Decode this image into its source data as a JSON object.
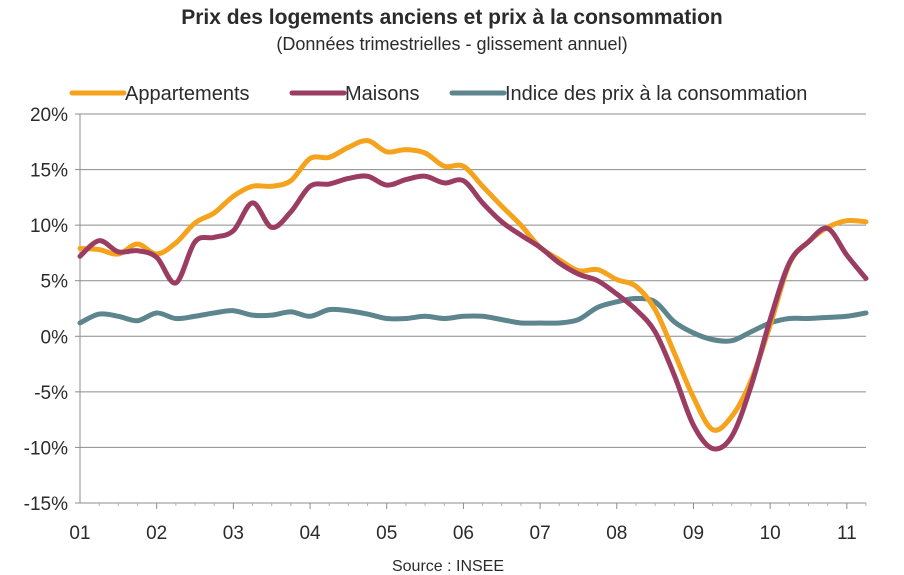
{
  "chart_data": {
    "type": "line",
    "title": "Prix des logements anciens et prix à la consommation",
    "subtitle": "(Données trimestrielles - glissement annuel)",
    "source": "Source : INSEE",
    "xlabel": "",
    "ylabel": "",
    "x_tick_labels": [
      "01",
      "02",
      "03",
      "04",
      "05",
      "06",
      "07",
      "08",
      "09",
      "10",
      "11"
    ],
    "x_range": [
      2001.0,
      2011.25
    ],
    "ylim": [
      -15,
      20
    ],
    "y_ticks": [
      -15,
      -10,
      -5,
      0,
      5,
      10,
      15,
      20
    ],
    "y_tick_labels": [
      "-15%",
      "-10%",
      "-5%",
      "0%",
      "5%",
      "10%",
      "15%",
      "20%"
    ],
    "grid": "horizontal",
    "legend_position": "top",
    "series": [
      {
        "name": "Appartements",
        "color": "#f5a21c",
        "x": [
          2001.0,
          2001.25,
          2001.5,
          2001.75,
          2002.0,
          2002.25,
          2002.5,
          2002.75,
          2003.0,
          2003.25,
          2003.5,
          2003.75,
          2004.0,
          2004.25,
          2004.5,
          2004.75,
          2005.0,
          2005.25,
          2005.5,
          2005.75,
          2006.0,
          2006.25,
          2006.5,
          2006.75,
          2007.0,
          2007.25,
          2007.5,
          2007.75,
          2008.0,
          2008.25,
          2008.5,
          2008.75,
          2009.0,
          2009.25,
          2009.5,
          2009.75,
          2010.0,
          2010.25,
          2010.5,
          2010.75,
          2011.0,
          2011.25
        ],
        "values": [
          7.9,
          7.8,
          7.4,
          8.3,
          7.4,
          8.4,
          10.2,
          11.1,
          12.6,
          13.5,
          13.5,
          14.0,
          16.0,
          16.1,
          17.0,
          17.6,
          16.6,
          16.8,
          16.5,
          15.3,
          15.3,
          13.5,
          11.7,
          10.0,
          8.0,
          6.9,
          5.9,
          6.0,
          5.1,
          4.5,
          2.4,
          -1.5,
          -5.5,
          -8.4,
          -7.2,
          -4.0,
          1.0,
          6.5,
          8.5,
          9.8,
          10.4,
          10.3
        ]
      },
      {
        "name": "Maisons",
        "color": "#9b3c63",
        "x": [
          2001.0,
          2001.25,
          2001.5,
          2001.75,
          2002.0,
          2002.25,
          2002.5,
          2002.75,
          2003.0,
          2003.25,
          2003.5,
          2003.75,
          2004.0,
          2004.25,
          2004.5,
          2004.75,
          2005.0,
          2005.25,
          2005.5,
          2005.75,
          2006.0,
          2006.25,
          2006.5,
          2006.75,
          2007.0,
          2007.25,
          2007.5,
          2007.75,
          2008.0,
          2008.25,
          2008.5,
          2008.75,
          2009.0,
          2009.25,
          2009.5,
          2009.75,
          2010.0,
          2010.25,
          2010.5,
          2010.75,
          2011.0,
          2011.25
        ],
        "values": [
          7.2,
          8.6,
          7.6,
          7.7,
          7.1,
          4.8,
          8.5,
          8.9,
          9.5,
          12.0,
          9.8,
          11.2,
          13.5,
          13.7,
          14.2,
          14.4,
          13.6,
          14.1,
          14.4,
          13.8,
          14.0,
          12.0,
          10.3,
          9.1,
          8.0,
          6.6,
          5.6,
          5.0,
          3.8,
          2.4,
          0.4,
          -3.5,
          -8.0,
          -10.1,
          -9.0,
          -4.5,
          1.5,
          6.6,
          8.5,
          9.7,
          7.3,
          5.2
        ]
      },
      {
        "name": "Indice des prix à la consommation",
        "color": "#5c858e",
        "x": [
          2001.0,
          2001.25,
          2001.5,
          2001.75,
          2002.0,
          2002.25,
          2002.5,
          2002.75,
          2003.0,
          2003.25,
          2003.5,
          2003.75,
          2004.0,
          2004.25,
          2004.5,
          2004.75,
          2005.0,
          2005.25,
          2005.5,
          2005.75,
          2006.0,
          2006.25,
          2006.5,
          2006.75,
          2007.0,
          2007.25,
          2007.5,
          2007.75,
          2008.0,
          2008.25,
          2008.5,
          2008.75,
          2009.0,
          2009.25,
          2009.5,
          2009.75,
          2010.0,
          2010.25,
          2010.5,
          2010.75,
          2011.0,
          2011.25
        ],
        "values": [
          1.2,
          2.0,
          1.8,
          1.4,
          2.1,
          1.6,
          1.8,
          2.1,
          2.3,
          1.9,
          1.9,
          2.2,
          1.8,
          2.4,
          2.3,
          2.0,
          1.6,
          1.6,
          1.8,
          1.6,
          1.8,
          1.8,
          1.5,
          1.2,
          1.2,
          1.2,
          1.5,
          2.6,
          3.1,
          3.4,
          3.1,
          1.3,
          0.3,
          -0.3,
          -0.4,
          0.4,
          1.2,
          1.6,
          1.6,
          1.7,
          1.8,
          2.1
        ]
      }
    ]
  }
}
